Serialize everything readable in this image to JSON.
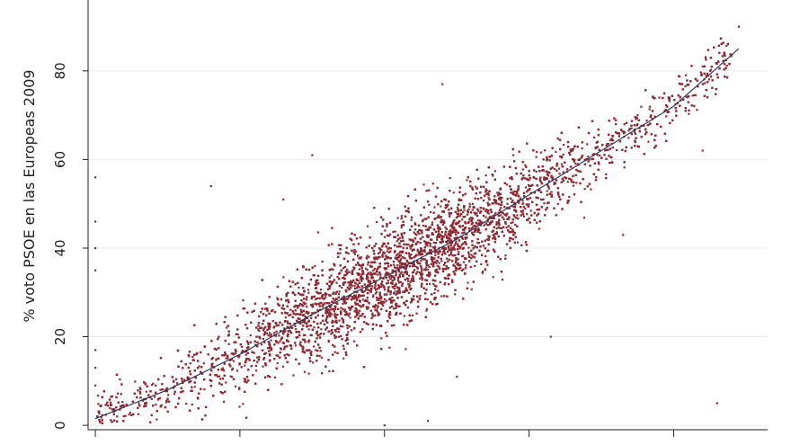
{
  "chart_data": {
    "type": "scatter",
    "ylabel": "% voto PSOE en las Europeas 2009",
    "xlabel": "",
    "ylim": [
      -1,
      96
    ],
    "xlim": [
      -1,
      93
    ],
    "yticks": [
      0,
      20,
      40,
      60,
      80
    ],
    "xticks": [
      0,
      20,
      40,
      60,
      80
    ],
    "x_tick_labels_visible": false,
    "grid": true,
    "legend": "none",
    "point_color": "#8b2c35",
    "fit_color": "#2f3a5c",
    "fit_line": {
      "x": [
        0,
        10,
        20,
        30,
        40,
        50,
        60,
        70,
        80,
        89
      ],
      "y": [
        1.5,
        8,
        16,
        25,
        33.5,
        42,
        52,
        62,
        72,
        85
      ]
    },
    "points_visible_count_approx": 8000,
    "series": [
      {
        "values_sample": [
          [
            3,
            2
          ],
          [
            6,
            5
          ],
          [
            9,
            8
          ],
          [
            12,
            10
          ],
          [
            15,
            14
          ],
          [
            18,
            16
          ],
          [
            21,
            19
          ],
          [
            24,
            22
          ],
          [
            27,
            25
          ],
          [
            30,
            27
          ],
          [
            33,
            30
          ],
          [
            36,
            32
          ],
          [
            39,
            34
          ],
          [
            42,
            37
          ],
          [
            45,
            40
          ],
          [
            48,
            42
          ],
          [
            51,
            44
          ],
          [
            54,
            47
          ],
          [
            57,
            50
          ],
          [
            60,
            54
          ],
          [
            63,
            58
          ],
          [
            66,
            62
          ],
          [
            69,
            65
          ],
          [
            72,
            68
          ],
          [
            75,
            70
          ],
          [
            78,
            74
          ],
          [
            81,
            77
          ],
          [
            84,
            81
          ],
          [
            87,
            84
          ],
          [
            0,
            56
          ],
          [
            0,
            46
          ],
          [
            0,
            40
          ],
          [
            0,
            35
          ],
          [
            0,
            17
          ],
          [
            0,
            13
          ],
          [
            0,
            9
          ],
          [
            16,
            54
          ],
          [
            26,
            51
          ],
          [
            30,
            61
          ],
          [
            48,
            77
          ],
          [
            50,
            11
          ],
          [
            46,
            1
          ],
          [
            40,
            0
          ],
          [
            63,
            20
          ],
          [
            73,
            43
          ],
          [
            84,
            62
          ],
          [
            89,
            90
          ],
          [
            86,
            5
          ]
        ]
      }
    ]
  }
}
